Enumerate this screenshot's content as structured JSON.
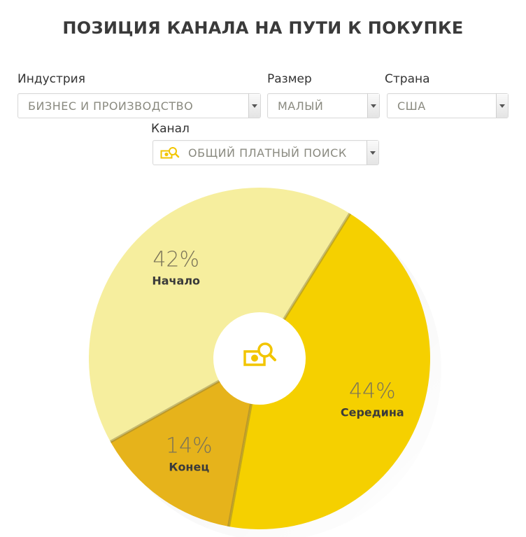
{
  "title": "ПОЗИЦИЯ КАНАЛА НА ПУТИ К ПОКУПКЕ",
  "filters": {
    "industry": {
      "label": "Индустрия",
      "value": "БИЗНЕС И ПРОИЗВОДСТВО"
    },
    "size": {
      "label": "Размер",
      "value": "МАЛЫЙ"
    },
    "country": {
      "label": "Страна",
      "value": "США"
    },
    "channel": {
      "label": "Канал",
      "value": "ОБЩИЙ ПЛАТНЫЙ ПОИСК",
      "icon": "money-search-icon"
    }
  },
  "chart_data": {
    "type": "pie",
    "style": "donut",
    "center_icon": "money-search-icon",
    "slices": [
      {
        "name": "Середина",
        "value": 44,
        "label": "44%",
        "color": "#f5d000"
      },
      {
        "name": "Конец",
        "value": 14,
        "label": "14%",
        "color": "#e6b31b"
      },
      {
        "name": "Начало",
        "value": 42,
        "label": "42%",
        "color": "#f6ee9e"
      }
    ]
  },
  "colors": {
    "accent": "#f5d000",
    "title": "#3a3a3a"
  }
}
